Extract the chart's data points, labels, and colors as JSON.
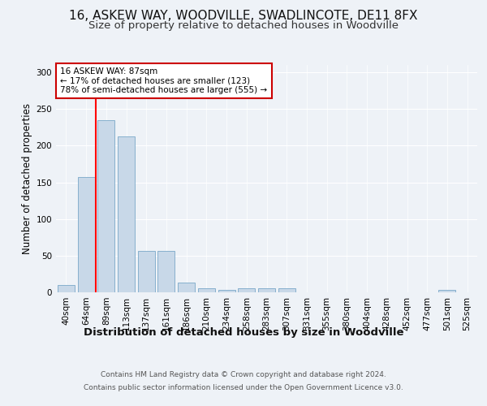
{
  "title1": "16, ASKEW WAY, WOODVILLE, SWADLINCOTE, DE11 8FX",
  "title2": "Size of property relative to detached houses in Woodville",
  "xlabel": "Distribution of detached houses by size in Woodville",
  "ylabel": "Number of detached properties",
  "categories": [
    "40sqm",
    "64sqm",
    "89sqm",
    "113sqm",
    "137sqm",
    "161sqm",
    "186sqm",
    "210sqm",
    "234sqm",
    "258sqm",
    "283sqm",
    "307sqm",
    "331sqm",
    "355sqm",
    "380sqm",
    "404sqm",
    "428sqm",
    "452sqm",
    "477sqm",
    "501sqm",
    "525sqm"
  ],
  "values": [
    10,
    157,
    235,
    213,
    57,
    57,
    13,
    5,
    3,
    5,
    5,
    5,
    0,
    0,
    0,
    0,
    0,
    0,
    0,
    3,
    0
  ],
  "bar_color": "#c8d8e8",
  "bar_edge_color": "#7aa8c8",
  "red_line_x": 1.5,
  "annotation_text": "16 ASKEW WAY: 87sqm\n← 17% of detached houses are smaller (123)\n78% of semi-detached houses are larger (555) →",
  "annotation_box_color": "#ffffff",
  "annotation_box_edge": "#cc0000",
  "ylim": [
    0,
    310
  ],
  "yticks": [
    0,
    50,
    100,
    150,
    200,
    250,
    300
  ],
  "background_color": "#eef2f7",
  "plot_background": "#eef2f7",
  "footer_line1": "Contains HM Land Registry data © Crown copyright and database right 2024.",
  "footer_line2": "Contains public sector information licensed under the Open Government Licence v3.0.",
  "title1_fontsize": 11,
  "title2_fontsize": 9.5,
  "xlabel_fontsize": 9.5,
  "ylabel_fontsize": 8.5,
  "tick_fontsize": 7.5,
  "footer_fontsize": 6.5,
  "annotation_fontsize": 7.5
}
